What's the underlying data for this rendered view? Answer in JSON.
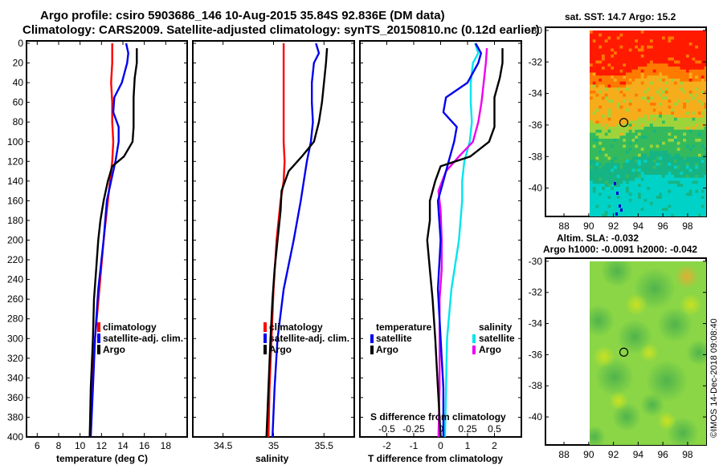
{
  "title_line1": "Argo profile: csiro 5903686_146 10-Aug-2015 35.84S 92.836E (DM data)",
  "title_line2": "Climatology: CARS2009. Satellite-adjusted climatology: synTS_20150810.nc (0.12d earlier)",
  "stamp": "©IMOS 14-Dec-2018 09:08:40",
  "colors": {
    "climatology": "#ff0000",
    "satellite": "#0000ee",
    "argo": "#000000",
    "sal_satellite": "#00e5ee",
    "sal_argo": "#ee00ee"
  },
  "chart_data": [
    {
      "type": "line",
      "name": "temperature",
      "xlabel": "temperature (deg C)",
      "ylabel": "",
      "xlim": [
        5,
        20
      ],
      "ylim": [
        400,
        0
      ],
      "x_ticks": [
        6,
        8,
        10,
        12,
        14,
        16,
        18
      ],
      "y_ticks": [
        0,
        20,
        40,
        60,
        80,
        100,
        120,
        140,
        160,
        180,
        200,
        220,
        240,
        260,
        280,
        300,
        320,
        340,
        360,
        380,
        400
      ],
      "legend": [
        "climatology",
        "satellite-adj. clim.",
        "Argo"
      ],
      "series": [
        {
          "name": "climatology",
          "depth": [
            0,
            20,
            40,
            60,
            80,
            100,
            120,
            140,
            160,
            200,
            250,
            300,
            350,
            400
          ],
          "values": [
            13.0,
            13.0,
            12.9,
            13.0,
            13.0,
            13.1,
            13.0,
            12.8,
            12.6,
            12.2,
            11.8,
            11.4,
            11.1,
            10.9
          ]
        },
        {
          "name": "satellite-adj. clim.",
          "depth": [
            0,
            10,
            20,
            40,
            55,
            70,
            85,
            100,
            120,
            140,
            160,
            200,
            250,
            300,
            350,
            400
          ],
          "values": [
            14.3,
            14.5,
            14.4,
            13.9,
            13.2,
            13.1,
            13.6,
            13.6,
            13.3,
            12.9,
            12.5,
            12.2,
            11.7,
            11.4,
            11.2,
            11.0
          ]
        },
        {
          "name": "Argo",
          "depth": [
            5,
            20,
            35,
            55,
            70,
            85,
            100,
            115,
            125,
            140,
            160,
            180,
            200,
            230,
            260,
            300,
            350,
            400
          ],
          "values": [
            15.3,
            15.3,
            15.1,
            15.0,
            15.0,
            15.0,
            14.9,
            14.1,
            13.0,
            12.6,
            12.2,
            11.9,
            11.7,
            11.5,
            11.3,
            11.2,
            11.0,
            10.9
          ]
        }
      ]
    },
    {
      "type": "line",
      "name": "salinity",
      "xlabel": "salinity",
      "ylabel": "",
      "xlim": [
        34.2,
        35.8
      ],
      "ylim": [
        400,
        0
      ],
      "x_ticks": [
        34.5,
        35,
        35.5
      ],
      "legend": [
        "climatology",
        "satellite-adj. clim.",
        "Argo"
      ],
      "series": [
        {
          "name": "climatology",
          "depth": [
            0,
            20,
            40,
            60,
            80,
            100,
            120,
            140,
            160,
            200,
            250,
            300,
            350,
            400
          ],
          "values": [
            35.1,
            35.1,
            35.1,
            35.1,
            35.1,
            35.1,
            35.11,
            35.1,
            35.07,
            35.03,
            35.0,
            34.98,
            34.96,
            34.95
          ]
        },
        {
          "name": "satellite-adj. clim.",
          "depth": [
            0,
            10,
            20,
            40,
            60,
            80,
            100,
            120,
            140,
            160,
            200,
            250,
            300,
            350,
            400
          ],
          "values": [
            35.42,
            35.45,
            35.4,
            35.38,
            35.38,
            35.39,
            35.37,
            35.33,
            35.3,
            35.27,
            35.2,
            35.1,
            35.04,
            35.01,
            34.99
          ]
        },
        {
          "name": "Argo",
          "depth": [
            5,
            20,
            40,
            60,
            80,
            100,
            115,
            130,
            150,
            170,
            200,
            230,
            260,
            300,
            350,
            400
          ],
          "values": [
            35.53,
            35.52,
            35.5,
            35.48,
            35.45,
            35.4,
            35.28,
            35.15,
            35.08,
            35.07,
            35.04,
            35.01,
            34.99,
            34.97,
            34.95,
            34.93
          ]
        }
      ]
    },
    {
      "type": "line",
      "name": "difference from climatology",
      "xlabel": "T difference from climatology",
      "xlabel_top": "S difference from climatology",
      "xlim_T": [
        -3,
        3
      ],
      "x_ticks_T": [
        -2,
        -1,
        0,
        1,
        2
      ],
      "xlim_S": [
        -0.75,
        0.75
      ],
      "x_ticks_S": [
        "-0.5",
        "-0.25",
        "0",
        "0.25",
        "0.5"
      ],
      "ylim": [
        400,
        0
      ],
      "legend_temperature_title": "temperature",
      "legend_salinity_title": "salinity",
      "legend_temperature": [
        "satellite",
        "Argo"
      ],
      "legend_salinity": [
        "satellite",
        "Argo"
      ],
      "series": [
        {
          "name": "T satellite",
          "group": "temperature",
          "depth": [
            0,
            10,
            20,
            40,
            55,
            70,
            85,
            100,
            120,
            140,
            160,
            200,
            250,
            300,
            350,
            400
          ],
          "values": [
            1.3,
            1.5,
            1.4,
            1.0,
            0.2,
            0.1,
            0.6,
            0.5,
            0.3,
            0.1,
            -0.1,
            0.0,
            -0.1,
            0.0,
            0.1,
            0.1
          ]
        },
        {
          "name": "T Argo",
          "group": "temperature",
          "depth": [
            5,
            20,
            35,
            55,
            70,
            85,
            100,
            115,
            125,
            140,
            160,
            180,
            200,
            230,
            260,
            300,
            350,
            400
          ],
          "values": [
            2.3,
            2.3,
            2.2,
            2.0,
            2.0,
            2.0,
            1.8,
            1.1,
            0.0,
            -0.2,
            -0.4,
            -0.4,
            -0.5,
            -0.4,
            -0.3,
            -0.2,
            -0.1,
            0.0
          ]
        },
        {
          "name": "S satellite",
          "group": "salinity",
          "depth": [
            0,
            10,
            20,
            40,
            60,
            80,
            100,
            120,
            140,
            160,
            200,
            250,
            300,
            350,
            400
          ],
          "values": [
            0.32,
            0.35,
            0.3,
            0.28,
            0.28,
            0.29,
            0.27,
            0.22,
            0.2,
            0.2,
            0.17,
            0.1,
            0.06,
            0.05,
            0.04
          ]
        },
        {
          "name": "S Argo",
          "group": "salinity",
          "depth": [
            5,
            20,
            40,
            60,
            80,
            100,
            115,
            130,
            150,
            170,
            200,
            230,
            260,
            300,
            350,
            400
          ],
          "values": [
            0.43,
            0.42,
            0.4,
            0.38,
            0.35,
            0.3,
            0.17,
            0.05,
            -0.02,
            0.0,
            0.01,
            0.01,
            -0.01,
            -0.01,
            -0.01,
            -0.02
          ]
        }
      ]
    },
    {
      "type": "heatmap",
      "name": "sat_sst",
      "title": "sat. SST: 14.7 Argo: 15.2",
      "x_ticks": [
        88,
        90,
        92,
        94,
        96,
        98
      ],
      "y_ticks": [
        -30,
        -32,
        -34,
        -36,
        -38,
        -40
      ],
      "xlim": [
        86.5,
        99.5
      ],
      "ylim": [
        -41.8,
        -29.8
      ],
      "data_lon_start": 90,
      "marker": {
        "lon": 92.84,
        "lat": -35.84
      }
    },
    {
      "type": "heatmap",
      "name": "altim_sla",
      "title_line1": "Altim. SLA: -0.032",
      "title_line2": "Argo h1000: -0.0091 h2000: -0.042",
      "x_ticks": [
        88,
        90,
        92,
        94,
        96,
        98
      ],
      "y_ticks": [
        -30,
        -32,
        -34,
        -36,
        -38,
        -40
      ],
      "xlim": [
        86.5,
        99.5
      ],
      "ylim": [
        -41.8,
        -29.8
      ],
      "data_lon_start": 90,
      "marker": {
        "lon": 92.84,
        "lat": -35.84
      }
    }
  ]
}
